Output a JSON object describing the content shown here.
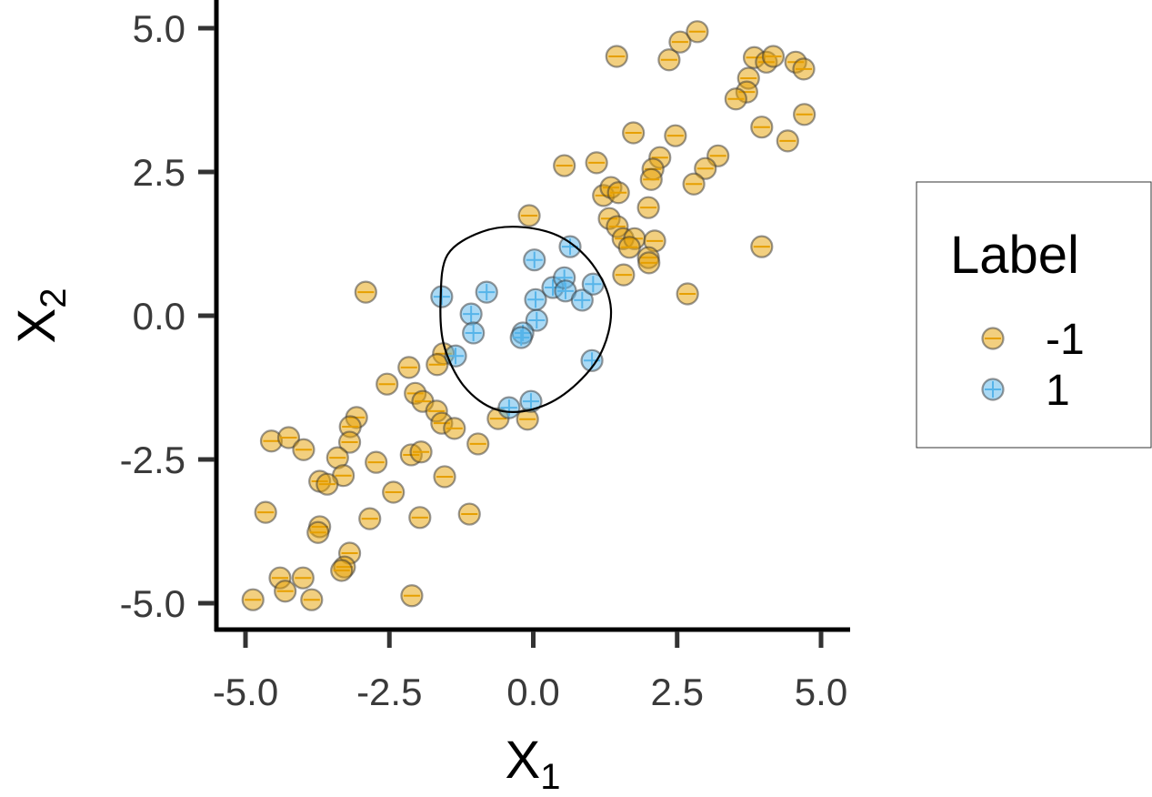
{
  "chart_data": {
    "type": "scatter",
    "title": "",
    "xlabel": "X",
    "xlabel_sub": "1",
    "ylabel": "X",
    "ylabel_sub": "2",
    "xlim": [
      -5.3,
      5.3
    ],
    "ylim": [
      -5.45,
      5.5
    ],
    "xticks": [
      -5.0,
      -2.5,
      0.0,
      2.5,
      5.0
    ],
    "yticks": [
      -5.0,
      -2.5,
      0.0,
      2.5,
      5.0
    ],
    "xtick_labels": [
      "-5.0",
      "-2.5",
      "0.0",
      "2.5",
      "5.0"
    ],
    "ytick_labels": [
      "-5.0",
      "-2.5",
      "0.0",
      "2.5",
      "5.0"
    ],
    "grid": false,
    "legend": {
      "title": "Label",
      "placement": "right",
      "entries": [
        {
          "label": "-1",
          "color": "#E69F00",
          "glyph": "minus"
        },
        {
          "label": "1",
          "color": "#56B4E9",
          "glyph": "plus"
        }
      ]
    },
    "series": [
      {
        "name": "-1",
        "color": "#E69F00",
        "points": [
          [
            1.45,
            4.51
          ],
          [
            2.36,
            4.45
          ],
          [
            2.55,
            4.76
          ],
          [
            2.85,
            4.94
          ],
          [
            3.84,
            4.49
          ],
          [
            4.05,
            4.41
          ],
          [
            4.17,
            4.51
          ],
          [
            4.56,
            4.41
          ],
          [
            4.7,
            4.29
          ],
          [
            3.74,
            4.13
          ],
          [
            3.71,
            3.89
          ],
          [
            3.52,
            3.77
          ],
          [
            4.71,
            3.5
          ],
          [
            3.97,
            3.28
          ],
          [
            4.42,
            3.04
          ],
          [
            1.74,
            3.18
          ],
          [
            2.47,
            3.13
          ],
          [
            0.54,
            2.61
          ],
          [
            1.1,
            2.66
          ],
          [
            3.21,
            2.78
          ],
          [
            2.99,
            2.56
          ],
          [
            2.79,
            2.29
          ],
          [
            2.2,
            2.75
          ],
          [
            2.08,
            2.55
          ],
          [
            2.05,
            2.37
          ],
          [
            1.22,
            2.09
          ],
          [
            1.35,
            2.23
          ],
          [
            1.48,
            2.14
          ],
          [
            1.32,
            1.69
          ],
          [
            1.46,
            1.55
          ],
          [
            2.0,
            1.88
          ],
          [
            -0.07,
            1.74
          ],
          [
            1.56,
            1.34
          ],
          [
            1.76,
            1.34
          ],
          [
            1.67,
            1.19
          ],
          [
            2.11,
            1.3
          ],
          [
            2.0,
            1.01
          ],
          [
            2.01,
            0.92
          ],
          [
            1.57,
            0.71
          ],
          [
            3.97,
            1.2
          ],
          [
            2.68,
            0.38
          ],
          [
            -2.91,
            0.41
          ],
          [
            -1.56,
            -0.66
          ],
          [
            -1.67,
            -0.85
          ],
          [
            -2.16,
            -0.9
          ],
          [
            -2.54,
            -1.19
          ],
          [
            -2.05,
            -1.35
          ],
          [
            -1.92,
            -1.49
          ],
          [
            -1.68,
            -1.66
          ],
          [
            -1.59,
            -1.87
          ],
          [
            -1.37,
            -1.96
          ],
          [
            -0.61,
            -1.79
          ],
          [
            -0.1,
            -1.8
          ],
          [
            -0.96,
            -2.23
          ],
          [
            -3.07,
            -1.77
          ],
          [
            -3.18,
            -1.93
          ],
          [
            -3.19,
            -2.2
          ],
          [
            -3.4,
            -2.47
          ],
          [
            -4.55,
            -2.18
          ],
          [
            -4.25,
            -2.12
          ],
          [
            -3.99,
            -2.33
          ],
          [
            -2.73,
            -2.55
          ],
          [
            -2.12,
            -2.42
          ],
          [
            -1.95,
            -2.37
          ],
          [
            -1.54,
            -2.8
          ],
          [
            -3.3,
            -2.78
          ],
          [
            -3.71,
            -2.88
          ],
          [
            -3.58,
            -2.93
          ],
          [
            -2.43,
            -3.07
          ],
          [
            -4.65,
            -3.42
          ],
          [
            -2.84,
            -3.53
          ],
          [
            -1.97,
            -3.51
          ],
          [
            -1.11,
            -3.45
          ],
          [
            -3.71,
            -3.67
          ],
          [
            -3.74,
            -3.77
          ],
          [
            -3.19,
            -4.13
          ],
          [
            -3.28,
            -4.37
          ],
          [
            -3.33,
            -4.43
          ],
          [
            -4.4,
            -4.56
          ],
          [
            -4.0,
            -4.56
          ],
          [
            -4.31,
            -4.79
          ],
          [
            -3.85,
            -4.94
          ],
          [
            -4.87,
            -4.94
          ],
          [
            -2.11,
            -4.87
          ]
        ]
      },
      {
        "name": "1",
        "color": "#56B4E9",
        "points": [
          [
            0.02,
            0.97
          ],
          [
            0.64,
            1.2
          ],
          [
            -1.59,
            0.33
          ],
          [
            -0.81,
            0.41
          ],
          [
            -1.08,
            0.03
          ],
          [
            -1.04,
            -0.3
          ],
          [
            0.04,
            0.28
          ],
          [
            0.34,
            0.49
          ],
          [
            0.54,
            0.66
          ],
          [
            0.56,
            0.43
          ],
          [
            0.85,
            0.27
          ],
          [
            1.04,
            0.55
          ],
          [
            0.06,
            -0.08
          ],
          [
            -0.18,
            -0.3
          ],
          [
            -0.21,
            -0.38
          ],
          [
            1.02,
            -0.78
          ],
          [
            -1.35,
            -0.7
          ],
          [
            -0.42,
            -1.6
          ],
          [
            -0.04,
            -1.49
          ]
        ]
      }
    ],
    "decision_boundary": [
      [
        -1.61,
        0.27
      ],
      [
        -1.49,
        1.06
      ],
      [
        -0.89,
        1.46
      ],
      [
        -0.18,
        1.54
      ],
      [
        0.53,
        1.34
      ],
      [
        1.08,
        0.82
      ],
      [
        1.35,
        0.11
      ],
      [
        1.16,
        -0.68
      ],
      [
        0.61,
        -1.31
      ],
      [
        -0.02,
        -1.63
      ],
      [
        -0.65,
        -1.63
      ],
      [
        -1.2,
        -1.23
      ],
      [
        -1.55,
        -0.52
      ]
    ]
  }
}
